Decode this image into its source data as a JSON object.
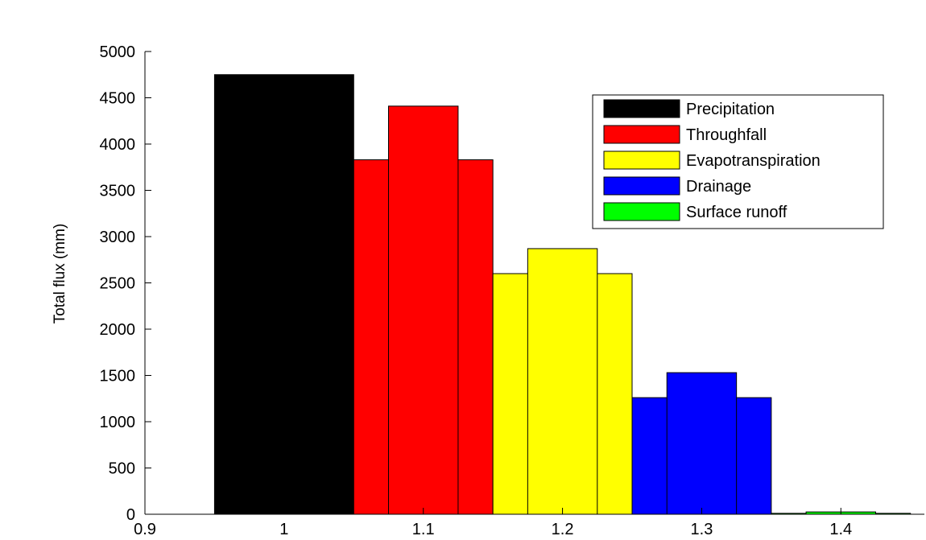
{
  "chart_data": {
    "type": "bar",
    "title": "",
    "xlabel": "",
    "ylabel": "Total flux (mm)",
    "xlim": [
      0.9,
      1.46
    ],
    "ylim": [
      0,
      5000
    ],
    "grid": false,
    "legend_position": "top-right",
    "x_ticks": [
      "0.9",
      "1",
      "1.1",
      "1.2",
      "1.3",
      "1.4"
    ],
    "y_ticks": [
      "0",
      "500",
      "1000",
      "1500",
      "2000",
      "2500",
      "3000",
      "3500",
      "4000",
      "4500",
      "5000"
    ],
    "series": [
      {
        "name": "Precipitation",
        "color": "#000000",
        "bars": [
          {
            "x_start": 0.95,
            "x_end": 1.05,
            "value": 4750
          }
        ]
      },
      {
        "name": "Throughfall",
        "color": "#ff0000",
        "bars": [
          {
            "x_start": 1.05,
            "x_end": 1.15,
            "value": 3830
          },
          {
            "x_start": 1.075,
            "x_end": 1.125,
            "value": 4410
          }
        ]
      },
      {
        "name": "Evapotranspiration",
        "color": "#ffff00",
        "bars": [
          {
            "x_start": 1.15,
            "x_end": 1.25,
            "value": 2600
          },
          {
            "x_start": 1.175,
            "x_end": 1.225,
            "value": 2870
          }
        ]
      },
      {
        "name": "Drainage",
        "color": "#0000ff",
        "bars": [
          {
            "x_start": 1.25,
            "x_end": 1.35,
            "value": 1260
          },
          {
            "x_start": 1.275,
            "x_end": 1.325,
            "value": 1530
          }
        ]
      },
      {
        "name": "Surface runoff",
        "color": "#00ff00",
        "bars": [
          {
            "x_start": 1.35,
            "x_end": 1.45,
            "value": 10
          },
          {
            "x_start": 1.375,
            "x_end": 1.425,
            "value": 25
          }
        ]
      }
    ]
  }
}
